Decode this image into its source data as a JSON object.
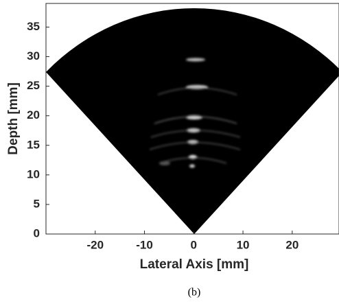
{
  "chart_data": {
    "type": "image",
    "caption": "(b)",
    "x_label": "Lateral Axis [mm]",
    "y_label": "Depth [mm]",
    "xlim": [
      -30,
      29.5
    ],
    "ylim": [
      0,
      39
    ],
    "xticks": [
      -20,
      -10,
      0,
      10,
      20
    ],
    "yticks": [
      0,
      5,
      10,
      15,
      20,
      25,
      30,
      35
    ]
  }
}
